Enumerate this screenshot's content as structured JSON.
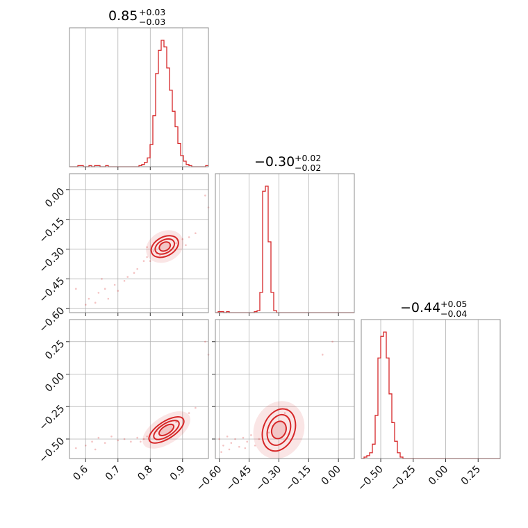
{
  "chart_data": {
    "type": "corner",
    "color": "#d62728",
    "grid": true,
    "parameters": [
      {
        "title_value": "0.85",
        "title_plus": "+0.03",
        "title_minus": "−0.03",
        "range": [
          0.55,
          0.98
        ],
        "ticks": [
          {
            "value": 0.6,
            "label": "0.6"
          },
          {
            "value": 0.7,
            "label": "0.7"
          },
          {
            "value": 0.8,
            "label": "0.8"
          },
          {
            "value": 0.9,
            "label": "0.9"
          }
        ],
        "hist": {
          "start": 0.55,
          "bin_width": 0.0086,
          "counts": [
            0,
            0,
            0,
            1,
            1,
            0,
            0,
            1,
            0,
            1,
            1,
            0,
            0,
            1,
            0,
            0,
            0,
            0,
            0,
            0,
            0,
            0,
            0,
            0,
            0,
            1,
            2,
            4,
            8,
            20,
            46,
            84,
            105,
            114,
            108,
            89,
            69,
            50,
            36,
            21,
            10,
            5,
            2,
            1,
            0,
            0,
            0,
            0,
            0,
            1
          ]
        }
      },
      {
        "title_value": "−0.30",
        "title_plus": "+0.02",
        "title_minus": "−0.02",
        "range": [
          -0.62,
          0.08
        ],
        "ticks": [
          {
            "value": -0.6,
            "label": "−0.60"
          },
          {
            "value": -0.45,
            "label": "−0.45"
          },
          {
            "value": -0.3,
            "label": "−0.30"
          },
          {
            "value": -0.15,
            "label": "−0.15"
          },
          {
            "value": 0.0,
            "label": "0.00"
          }
        ],
        "hist": {
          "start": -0.62,
          "bin_width": 0.014,
          "counts": [
            0,
            1,
            1,
            0,
            1,
            0,
            0,
            0,
            0,
            0,
            0,
            0,
            0,
            0,
            1,
            2,
            20,
            120,
            125,
            70,
            20,
            2,
            0,
            0,
            0,
            0,
            0,
            0,
            0,
            0,
            0,
            0,
            0,
            0,
            0,
            0,
            0,
            0,
            0,
            0,
            0,
            0,
            0,
            0,
            0,
            0,
            0,
            0,
            0,
            0
          ]
        }
      },
      {
        "title_value": "−0.44",
        "title_plus": "+0.05",
        "title_minus": "−0.04",
        "range": [
          -0.65,
          0.42
        ],
        "ticks": [
          {
            "value": -0.5,
            "label": "−0.50"
          },
          {
            "value": -0.25,
            "label": "−0.25"
          },
          {
            "value": 0.0,
            "label": "0.00"
          },
          {
            "value": 0.25,
            "label": "0.25"
          }
        ],
        "hist": {
          "start": -0.65,
          "bin_width": 0.0214,
          "counts": [
            0,
            1,
            2,
            4,
            10,
            30,
            70,
            85,
            88,
            70,
            45,
            25,
            12,
            4,
            1,
            0,
            0,
            0,
            0,
            0,
            0,
            0,
            0,
            0,
            0,
            0,
            0,
            0,
            0,
            0,
            0,
            0,
            0,
            0,
            0,
            0,
            0,
            0,
            0,
            0,
            0,
            0,
            0,
            0,
            0,
            0,
            0,
            0,
            0,
            0
          ]
        }
      }
    ],
    "pairs": [
      {
        "x_param": 0,
        "y_param": 1,
        "y_range": [
          -0.62,
          0.08
        ],
        "y_ticks": [
          {
            "value": 0.0,
            "label": "0.00"
          },
          {
            "value": -0.15,
            "label": "−0.15"
          },
          {
            "value": -0.3,
            "label": "−0.30"
          },
          {
            "value": -0.45,
            "label": "−0.45"
          },
          {
            "value": -0.6,
            "label": "−0.60"
          }
        ],
        "contours": [
          {
            "cx": 0.845,
            "cy": -0.287,
            "rx": 0.045,
            "ry": 0.008,
            "angle": -28
          },
          {
            "cx": 0.845,
            "cy": -0.287,
            "rx": 0.032,
            "ry": 0.0055,
            "angle": -28
          },
          {
            "cx": 0.845,
            "cy": -0.287,
            "rx": 0.018,
            "ry": 0.0035,
            "angle": -28
          }
        ],
        "scatter": [
          [
            0.6,
            -0.58
          ],
          [
            0.61,
            -0.55
          ],
          [
            0.63,
            -0.57
          ],
          [
            0.64,
            -0.52
          ],
          [
            0.66,
            -0.5
          ],
          [
            0.67,
            -0.55
          ],
          [
            0.69,
            -0.48
          ],
          [
            0.7,
            -0.51
          ],
          [
            0.72,
            -0.46
          ],
          [
            0.73,
            -0.44
          ],
          [
            0.75,
            -0.42
          ],
          [
            0.76,
            -0.4
          ],
          [
            0.78,
            -0.36
          ],
          [
            0.79,
            -0.34
          ],
          [
            0.8,
            -0.36
          ],
          [
            0.81,
            -0.31
          ],
          [
            0.82,
            -0.32
          ],
          [
            0.83,
            -0.33
          ],
          [
            0.84,
            -0.3
          ],
          [
            0.86,
            -0.29
          ],
          [
            0.88,
            -0.27
          ],
          [
            0.9,
            -0.25
          ],
          [
            0.92,
            -0.24
          ],
          [
            0.94,
            -0.22
          ],
          [
            0.97,
            -0.03
          ],
          [
            0.98,
            -0.09
          ],
          [
            0.79,
            -0.29
          ],
          [
            0.91,
            -0.28
          ],
          [
            0.57,
            -0.5
          ],
          [
            0.65,
            -0.45
          ]
        ]
      },
      {
        "x_param": 0,
        "y_param": 2,
        "y_range": [
          -0.65,
          0.42
        ],
        "y_ticks": [
          {
            "value": 0.25,
            "label": "0.25"
          },
          {
            "value": 0.0,
            "label": "0.00"
          },
          {
            "value": -0.25,
            "label": "−0.25"
          },
          {
            "value": -0.5,
            "label": "−0.50"
          }
        ],
        "contours": [
          {
            "cx": 0.85,
            "cy": -0.43,
            "rx": 0.062,
            "ry": 0.011,
            "angle": -33
          },
          {
            "cx": 0.85,
            "cy": -0.43,
            "rx": 0.045,
            "ry": 0.008,
            "angle": -33
          },
          {
            "cx": 0.85,
            "cy": -0.43,
            "rx": 0.026,
            "ry": 0.005,
            "angle": -33
          }
        ],
        "scatter": [
          [
            0.6,
            -0.55
          ],
          [
            0.62,
            -0.52
          ],
          [
            0.64,
            -0.49
          ],
          [
            0.66,
            -0.53
          ],
          [
            0.68,
            -0.48
          ],
          [
            0.7,
            -0.51
          ],
          [
            0.72,
            -0.5
          ],
          [
            0.74,
            -0.52
          ],
          [
            0.76,
            -0.49
          ],
          [
            0.78,
            -0.5
          ],
          [
            0.79,
            -0.48
          ],
          [
            0.8,
            -0.46
          ],
          [
            0.82,
            -0.44
          ],
          [
            0.84,
            -0.42
          ],
          [
            0.86,
            -0.4
          ],
          [
            0.88,
            -0.37
          ],
          [
            0.9,
            -0.34
          ],
          [
            0.92,
            -0.3
          ],
          [
            0.94,
            -0.26
          ],
          [
            0.97,
            0.25
          ],
          [
            0.98,
            0.15
          ],
          [
            0.57,
            -0.57
          ],
          [
            0.63,
            -0.58
          ],
          [
            0.77,
            -0.52
          ]
        ]
      },
      {
        "x_param": 1,
        "y_param": 2,
        "y_range": [
          -0.65,
          0.42
        ],
        "y_ticks": [],
        "contours": [
          {
            "cx": -0.3,
            "cy": -0.43,
            "rx": 0.11,
            "ry": 0.02,
            "angle": -68
          },
          {
            "cx": -0.3,
            "cy": -0.43,
            "rx": 0.08,
            "ry": 0.014,
            "angle": -68
          },
          {
            "cx": -0.3,
            "cy": -0.43,
            "rx": 0.045,
            "ry": 0.009,
            "angle": -68
          }
        ],
        "scatter": [
          [
            -0.6,
            -0.5
          ],
          [
            -0.58,
            -0.55
          ],
          [
            -0.56,
            -0.48
          ],
          [
            -0.54,
            -0.53
          ],
          [
            -0.52,
            -0.5
          ],
          [
            -0.5,
            -0.56
          ],
          [
            -0.48,
            -0.49
          ],
          [
            -0.46,
            -0.52
          ],
          [
            -0.44,
            -0.47
          ],
          [
            -0.42,
            -0.55
          ],
          [
            -0.4,
            -0.5
          ],
          [
            -0.35,
            -0.45
          ],
          [
            -0.33,
            -0.4
          ],
          [
            -0.27,
            -0.3
          ],
          [
            -0.26,
            -0.27
          ],
          [
            -0.03,
            0.25
          ],
          [
            -0.08,
            0.15
          ],
          [
            -0.59,
            -0.6
          ],
          [
            -0.55,
            -0.58
          ],
          [
            -0.47,
            -0.57
          ]
        ]
      }
    ]
  }
}
